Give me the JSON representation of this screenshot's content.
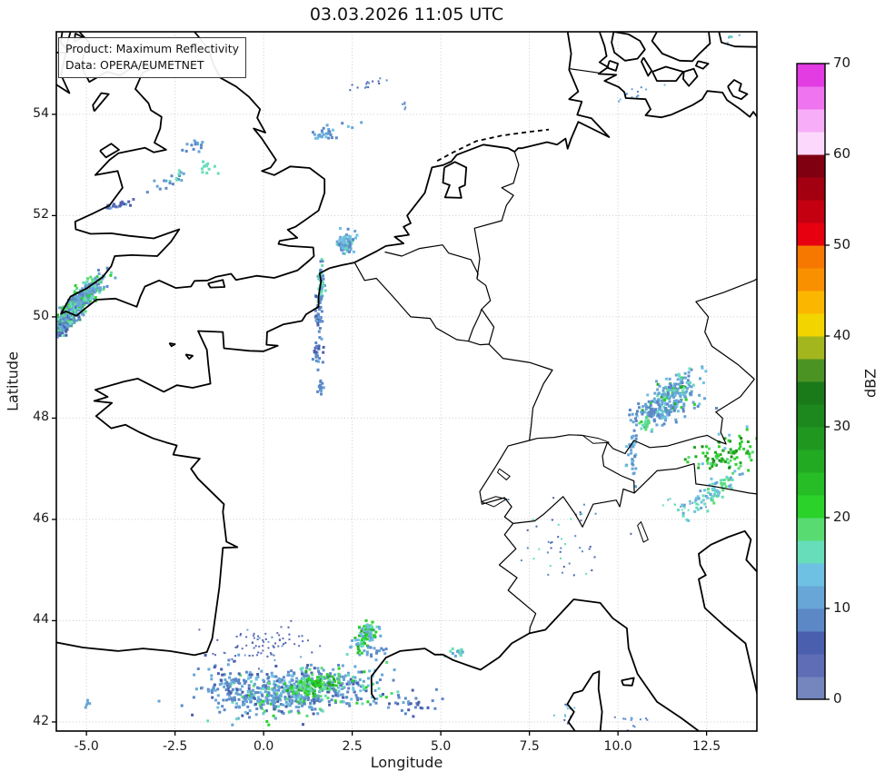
{
  "title": "03.03.2026 11:05 UTC",
  "annotation": {
    "line1": "Product: Maximum Reflectivity",
    "line2": "Data: OPERA/EUMETNET"
  },
  "axes": {
    "xlabel": "Longitude",
    "ylabel": "Latitude",
    "x_ticks": [
      -5.0,
      -2.5,
      0.0,
      2.5,
      5.0,
      7.5,
      10.0,
      12.5
    ],
    "x_tick_labels": [
      "-5.0",
      "-2.5",
      "0.0",
      "2.5",
      "5.0",
      "7.5",
      "10.0",
      "12.5"
    ],
    "y_ticks": [
      42,
      44,
      46,
      48,
      50,
      52,
      54
    ],
    "y_tick_labels": [
      "42",
      "44",
      "46",
      "48",
      "50",
      "52",
      "54"
    ]
  },
  "chart_data": {
    "type": "heatmap",
    "title": "03.03.2026 11:05 UTC",
    "xlabel": "Longitude",
    "ylabel": "Latitude",
    "colorbar_label": "dBZ",
    "xlim": [
      -5.85,
      13.92
    ],
    "ylim": [
      41.82,
      55.63
    ],
    "grid": true,
    "grid_style": "dotted-lightgray",
    "legend_position": "right-colorbar",
    "colorbar": {
      "min": 0,
      "max": 70,
      "step": 2.5,
      "ticks": [
        0,
        10,
        20,
        30,
        40,
        50,
        60,
        70
      ],
      "colors": [
        "#7585bd",
        "#5f6db6",
        "#4a5fae",
        "#5c88c6",
        "#67a6d6",
        "#6fc1e3",
        "#68ddba",
        "#58dc72",
        "#2ad22a",
        "#26bd26",
        "#23aa23",
        "#209820",
        "#1d881d",
        "#1a7a1a",
        "#4b9423",
        "#a4b61e",
        "#f2d500",
        "#fbb700",
        "#f99000",
        "#f67800",
        "#e60010",
        "#c40010",
        "#a20010",
        "#800012",
        "#fcd9fc",
        "#f7adf7",
        "#ef74ef",
        "#e23ce2"
      ]
    },
    "echo_clusters": [
      {
        "name": "cornwall-core",
        "lon": -5.45,
        "lat": 50.08,
        "dlon": 0.42,
        "dlat": 0.1,
        "angle": 35,
        "n": 300,
        "size": 3,
        "seed": 11,
        "dbz": [
          [
            9,
            20
          ],
          [
            12,
            20
          ],
          [
            15,
            15
          ],
          [
            18,
            20
          ],
          [
            21,
            15
          ],
          [
            24,
            8
          ],
          [
            28,
            2
          ]
        ]
      },
      {
        "name": "cornwall-north",
        "lon": -5.05,
        "lat": 50.42,
        "dlon": 0.38,
        "dlat": 0.09,
        "angle": 35,
        "n": 150,
        "size": 3,
        "seed": 12,
        "dbz": [
          [
            9,
            35
          ],
          [
            12,
            30
          ],
          [
            15,
            20
          ],
          [
            18,
            10
          ],
          [
            21,
            5
          ]
        ]
      },
      {
        "name": "cornwall-south",
        "lon": -5.62,
        "lat": 49.82,
        "dlon": 0.28,
        "dlat": 0.08,
        "angle": 35,
        "n": 90,
        "size": 3,
        "seed": 13,
        "dbz": [
          [
            6,
            30
          ],
          [
            9,
            40
          ],
          [
            12,
            20
          ],
          [
            15,
            10
          ]
        ]
      },
      {
        "name": "cornwall-mid",
        "lon": -5.3,
        "lat": 50.25,
        "dlon": 0.45,
        "dlat": 0.12,
        "angle": 35,
        "n": 120,
        "size": 3,
        "seed": 14,
        "dbz": [
          [
            9,
            30
          ],
          [
            12,
            25
          ],
          [
            15,
            20
          ],
          [
            18,
            15
          ],
          [
            22,
            10
          ]
        ]
      },
      {
        "name": "wales-streak",
        "lon": -4.05,
        "lat": 52.22,
        "dlon": 0.22,
        "dlat": 0.04,
        "angle": 10,
        "n": 22,
        "size": 3,
        "seed": 15,
        "dbz": [
          [
            4,
            40
          ],
          [
            7,
            40
          ],
          [
            10,
            20
          ]
        ]
      },
      {
        "name": "midlands-specks",
        "lon": -2.55,
        "lat": 52.72,
        "dlon": 0.3,
        "dlat": 0.08,
        "angle": 15,
        "n": 20,
        "size": 3,
        "seed": 16,
        "dbz": [
          [
            9,
            50
          ],
          [
            12,
            30
          ],
          [
            15,
            20
          ]
        ]
      },
      {
        "name": "peak-specks",
        "lon": -2.0,
        "lat": 53.4,
        "dlon": 0.25,
        "dlat": 0.08,
        "angle": 20,
        "n": 14,
        "size": 3,
        "seed": 17,
        "dbz": [
          [
            9,
            60
          ],
          [
            12,
            40
          ]
        ]
      },
      {
        "name": "midlands-curl",
        "lon": -1.62,
        "lat": 52.98,
        "dlon": 0.14,
        "dlat": 0.06,
        "angle": 0,
        "n": 12,
        "size": 3,
        "seed": 18,
        "dbz": [
          [
            15,
            60
          ],
          [
            17,
            40
          ]
        ]
      },
      {
        "name": "northsea-dashes",
        "lon": 1.7,
        "lat": 53.62,
        "dlon": 0.38,
        "dlat": 0.06,
        "angle": 12,
        "n": 30,
        "size": 3,
        "seed": 19,
        "dbz": [
          [
            8,
            40
          ],
          [
            11,
            40
          ],
          [
            14,
            20
          ]
        ]
      },
      {
        "name": "northsea-north",
        "lon": 2.9,
        "lat": 54.55,
        "dlon": 0.3,
        "dlat": 0.07,
        "angle": 10,
        "n": 14,
        "size": 2,
        "seed": 20,
        "dbz": [
          [
            6,
            50
          ],
          [
            9,
            50
          ]
        ]
      },
      {
        "name": "germanbight-dot",
        "lon": 3.95,
        "lat": 54.18,
        "dlon": 0.06,
        "dlat": 0.04,
        "angle": 0,
        "n": 5,
        "size": 2,
        "seed": 21,
        "dbz": [
          [
            8,
            100
          ]
        ]
      },
      {
        "name": "kielbay-specks",
        "lon": 10.45,
        "lat": 54.38,
        "dlon": 0.25,
        "dlat": 0.06,
        "angle": 10,
        "n": 12,
        "size": 2,
        "seed": 22,
        "dbz": [
          [
            8,
            40
          ],
          [
            11,
            40
          ],
          [
            14,
            20
          ]
        ]
      },
      {
        "name": "baltic-corner",
        "lon": 13.15,
        "lat": 55.52,
        "dlon": 0.15,
        "dlat": 0.05,
        "angle": 0,
        "n": 8,
        "size": 2,
        "seed": 23,
        "dbz": [
          [
            11,
            50
          ],
          [
            15,
            50
          ]
        ]
      },
      {
        "name": "dutchcoast-blob",
        "lon": 2.32,
        "lat": 51.45,
        "dlon": 0.13,
        "dlat": 0.1,
        "angle": 0,
        "n": 80,
        "size": 3,
        "seed": 24,
        "dbz": [
          [
            8,
            25
          ],
          [
            11,
            35
          ],
          [
            14,
            25
          ],
          [
            16,
            15
          ]
        ]
      },
      {
        "name": "dover-streak",
        "lon": 1.62,
        "lat": 50.62,
        "dlon": 0.05,
        "dlat": 0.22,
        "angle": 0,
        "n": 55,
        "size": 3,
        "seed": 25,
        "dbz": [
          [
            9,
            25
          ],
          [
            12,
            25
          ],
          [
            15,
            30
          ],
          [
            17,
            20
          ]
        ]
      },
      {
        "name": "picardy-streak",
        "lon": 1.55,
        "lat": 49.95,
        "dlon": 0.06,
        "dlat": 0.18,
        "angle": 0,
        "n": 35,
        "size": 3,
        "seed": 26,
        "dbz": [
          [
            6,
            25
          ],
          [
            9,
            45
          ],
          [
            12,
            30
          ]
        ]
      },
      {
        "name": "oise-streak",
        "lon": 1.53,
        "lat": 49.3,
        "dlon": 0.06,
        "dlat": 0.15,
        "angle": 0,
        "n": 25,
        "size": 3,
        "seed": 27,
        "dbz": [
          [
            6,
            30
          ],
          [
            9,
            50
          ],
          [
            12,
            20
          ]
        ]
      },
      {
        "name": "idf-dash",
        "lon": 1.62,
        "lat": 48.62,
        "dlon": 0.05,
        "dlat": 0.08,
        "angle": 0,
        "n": 15,
        "size": 3,
        "seed": 28,
        "dbz": [
          [
            9,
            60
          ],
          [
            12,
            40
          ]
        ]
      },
      {
        "name": "bavaria-main",
        "lon": 11.55,
        "lat": 48.42,
        "dlon": 0.4,
        "dlat": 0.18,
        "angle": 20,
        "n": 240,
        "size": 3,
        "seed": 29,
        "dbz": [
          [
            8,
            25
          ],
          [
            11,
            35
          ],
          [
            14,
            20
          ],
          [
            16,
            12
          ],
          [
            21,
            5
          ],
          [
            25,
            3
          ]
        ]
      },
      {
        "name": "bavaria-west",
        "lon": 11.0,
        "lat": 48.1,
        "dlon": 0.22,
        "dlat": 0.14,
        "angle": 0,
        "n": 50,
        "size": 3,
        "seed": 30,
        "dbz": [
          [
            8,
            50
          ],
          [
            11,
            35
          ],
          [
            14,
            15
          ]
        ]
      },
      {
        "name": "allgaeu-string",
        "lon": 10.42,
        "lat": 47.5,
        "dlon": 0.07,
        "dlat": 0.32,
        "angle": 0,
        "n": 40,
        "size": 3,
        "seed": 31,
        "dbz": [
          [
            8,
            45
          ],
          [
            11,
            35
          ],
          [
            14,
            20
          ]
        ]
      },
      {
        "name": "allgaeu-core",
        "lon": 10.8,
        "lat": 47.88,
        "dlon": 0.08,
        "dlat": 0.07,
        "angle": 0,
        "n": 20,
        "size": 3,
        "seed": 32,
        "dbz": [
          [
            15,
            40
          ],
          [
            18,
            40
          ],
          [
            21,
            20
          ]
        ]
      },
      {
        "name": "austria-green",
        "lon": 13.15,
        "lat": 47.3,
        "dlon": 0.5,
        "dlat": 0.16,
        "angle": 10,
        "n": 100,
        "size": 3,
        "seed": 33,
        "dbz": [
          [
            14,
            10
          ],
          [
            18,
            20
          ],
          [
            21,
            30
          ],
          [
            26,
            25
          ],
          [
            31,
            15
          ]
        ]
      },
      {
        "name": "alps-streak",
        "lon": 12.75,
        "lat": 46.55,
        "dlon": 0.45,
        "dlat": 0.1,
        "angle": 28,
        "n": 80,
        "size": 3,
        "seed": 34,
        "dbz": [
          [
            11,
            25
          ],
          [
            14,
            30
          ],
          [
            16,
            30
          ],
          [
            19,
            15
          ]
        ]
      },
      {
        "name": "dolomites-specks",
        "lon": 11.85,
        "lat": 46.3,
        "dlon": 0.25,
        "dlat": 0.07,
        "angle": 0,
        "n": 20,
        "size": 2,
        "seed": 35,
        "dbz": [
          [
            11,
            40
          ],
          [
            15,
            60
          ]
        ]
      },
      {
        "name": "piedmont-drizzle",
        "lon": 8.55,
        "lat": 45.6,
        "dlon": 0.6,
        "dlat": 0.45,
        "angle": 0,
        "n": 45,
        "size": 2,
        "seed": 36,
        "dbz": [
          [
            5,
            45
          ],
          [
            9,
            30
          ],
          [
            15,
            25
          ]
        ]
      },
      {
        "name": "pyrenees-band",
        "lon": 0.9,
        "lat": 42.6,
        "dlon": 1.05,
        "dlat": 0.22,
        "angle": 3,
        "n": 620,
        "size": 3,
        "seed": 37,
        "dbz": [
          [
            5,
            12
          ],
          [
            8,
            28
          ],
          [
            11,
            28
          ],
          [
            14,
            12
          ],
          [
            16,
            8
          ],
          [
            19,
            7
          ],
          [
            22,
            5
          ]
        ]
      },
      {
        "name": "pyrenees-green",
        "lon": 1.4,
        "lat": 42.72,
        "dlon": 0.38,
        "dlat": 0.1,
        "angle": 5,
        "n": 120,
        "size": 3,
        "seed": 38,
        "dbz": [
          [
            16,
            15
          ],
          [
            19,
            25
          ],
          [
            22,
            35
          ],
          [
            26,
            25
          ]
        ]
      },
      {
        "name": "pyrenees-west",
        "lon": -1.15,
        "lat": 42.8,
        "dlon": 0.4,
        "dlat": 0.18,
        "angle": 0,
        "n": 70,
        "size": 3,
        "seed": 39,
        "dbz": [
          [
            6,
            35
          ],
          [
            9,
            40
          ],
          [
            12,
            25
          ]
        ]
      },
      {
        "name": "gascony-drizzle",
        "lon": 0.0,
        "lat": 43.55,
        "dlon": 0.75,
        "dlat": 0.18,
        "angle": 5,
        "n": 80,
        "size": 2,
        "seed": 40,
        "dbz": [
          [
            4,
            55
          ],
          [
            7,
            30
          ],
          [
            10,
            15
          ]
        ]
      },
      {
        "name": "languedoc-blob",
        "lon": 2.88,
        "lat": 43.7,
        "dlon": 0.2,
        "dlat": 0.12,
        "angle": 25,
        "n": 100,
        "size": 3,
        "seed": 41,
        "dbz": [
          [
            11,
            18
          ],
          [
            14,
            20
          ],
          [
            17,
            22
          ],
          [
            20,
            22
          ],
          [
            23,
            13
          ],
          [
            27,
            5
          ]
        ]
      },
      {
        "name": "herault-specks",
        "lon": 3.15,
        "lat": 43.4,
        "dlon": 0.15,
        "dlat": 0.07,
        "angle": 0,
        "n": 18,
        "size": 3,
        "seed": 42,
        "dbz": [
          [
            8,
            50
          ],
          [
            11,
            50
          ]
        ]
      },
      {
        "name": "provence-dots",
        "lon": 5.45,
        "lat": 43.35,
        "dlon": 0.13,
        "dlat": 0.06,
        "angle": 0,
        "n": 14,
        "size": 3,
        "seed": 43,
        "dbz": [
          [
            11,
            40
          ],
          [
            15,
            60
          ]
        ]
      },
      {
        "name": "roussillon-specks",
        "lon": 4.2,
        "lat": 42.35,
        "dlon": 0.45,
        "dlat": 0.13,
        "angle": 0,
        "n": 30,
        "size": 3,
        "seed": 44,
        "dbz": [
          [
            6,
            40
          ],
          [
            9,
            40
          ],
          [
            12,
            20
          ]
        ]
      },
      {
        "name": "corsica-specks",
        "lon": 8.55,
        "lat": 42.12,
        "dlon": 0.12,
        "dlat": 0.18,
        "angle": 0,
        "n": 14,
        "size": 2,
        "seed": 45,
        "dbz": [
          [
            6,
            50
          ],
          [
            13,
            50
          ]
        ]
      },
      {
        "name": "tyrrhenian-dots",
        "lon": 10.35,
        "lat": 42.0,
        "dlon": 0.25,
        "dlat": 0.07,
        "angle": 0,
        "n": 12,
        "size": 2,
        "seed": 46,
        "dbz": [
          [
            8,
            50
          ],
          [
            13,
            50
          ]
        ]
      },
      {
        "name": "cantabria-dot",
        "lon": -5.0,
        "lat": 42.35,
        "dlon": 0.05,
        "dlat": 0.05,
        "angle": 0,
        "n": 5,
        "size": 3,
        "seed": 47,
        "dbz": [
          [
            11,
            100
          ]
        ]
      }
    ]
  }
}
